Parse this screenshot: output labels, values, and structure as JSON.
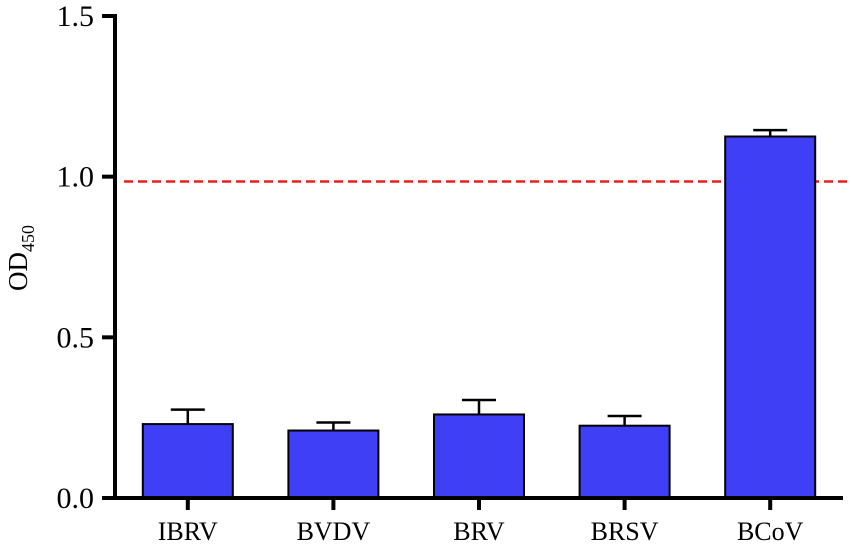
{
  "chart_data": {
    "type": "bar",
    "categories": [
      "IBRV",
      "BVDV",
      "BRV",
      "BRSV",
      "BCoV"
    ],
    "values": [
      0.23,
      0.21,
      0.26,
      0.225,
      1.125
    ],
    "errors": [
      0.045,
      0.025,
      0.045,
      0.03,
      0.02
    ],
    "ylabel": {
      "main": "OD",
      "sub": "450"
    },
    "ylim": [
      0,
      1.5
    ],
    "yticks": [
      "0.0",
      "0.5",
      "1.0",
      "1.5"
    ],
    "threshold": 0.985,
    "grid": false,
    "colors": {
      "bar": "#3f3ff5",
      "bar_edge": "#000000",
      "threshold": "#e8201b",
      "axis": "#000000"
    }
  }
}
